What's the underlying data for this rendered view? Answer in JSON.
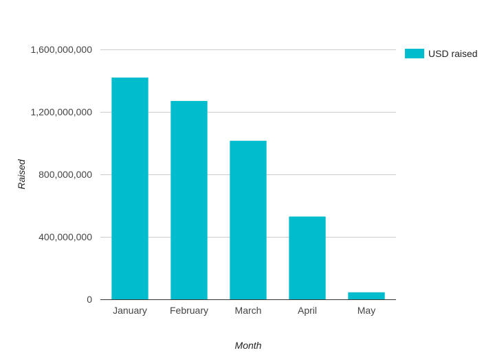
{
  "chart_data": {
    "type": "bar",
    "categories": [
      "January",
      "February",
      "March",
      "April",
      "May"
    ],
    "series": [
      {
        "name": "USD raised",
        "color": "#00bccc",
        "values": [
          1420000000,
          1270000000,
          1015000000,
          530000000,
          45000000
        ]
      }
    ],
    "xlabel": "Month",
    "ylabel": "Raised",
    "ylim": [
      0,
      1600000000
    ],
    "yticks": [
      0,
      400000000,
      800000000,
      1200000000,
      1600000000
    ],
    "ytick_labels": [
      "0",
      "400,000,000",
      "800,000,000",
      "1,200,000,000",
      "1,600,000,000"
    ],
    "grid": true,
    "legend_position": "top-right"
  }
}
